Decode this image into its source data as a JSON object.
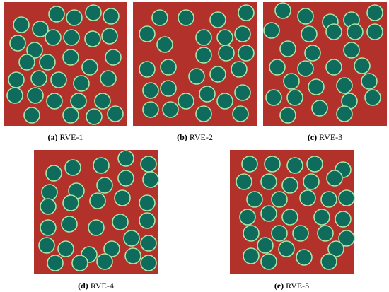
{
  "panels": [
    {
      "tag": "(a)",
      "name": "RVE-1"
    },
    {
      "tag": "(b)",
      "name": "RVE-2"
    },
    {
      "tag": "(c)",
      "name": "RVE-3"
    },
    {
      "tag": "(d)",
      "name": "RVE-4"
    },
    {
      "tag": "(e)",
      "name": "RVE-5"
    }
  ]
}
